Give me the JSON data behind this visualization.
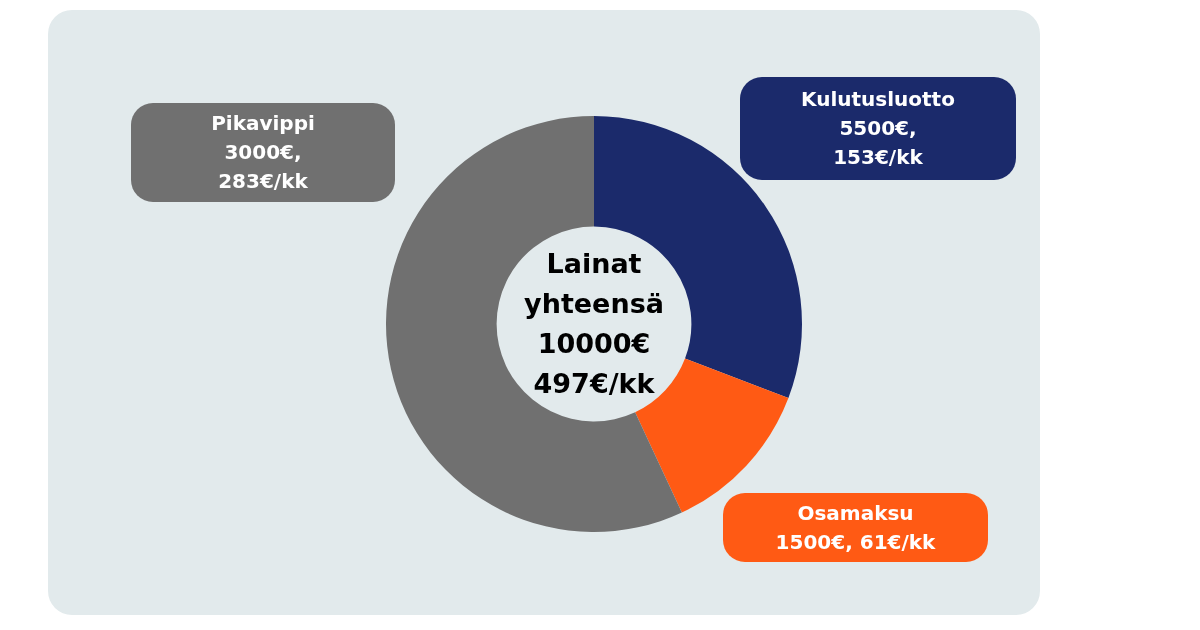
{
  "chart_data": {
    "type": "donut",
    "title": "Lainat yhteensä 10000€ 497€/kk",
    "categories": [
      "Kulutusluotto",
      "Osamaksu",
      "Pikavippi"
    ],
    "values": [
      153,
      61,
      283
    ],
    "value_labels": [
      "5500€, 153€/kk",
      "1500€, 61€/kk",
      "3000€, 283€/kk"
    ],
    "colors": [
      "#1b2a6b",
      "#ff5a14",
      "#707070"
    ],
    "legend": false
  }
}
